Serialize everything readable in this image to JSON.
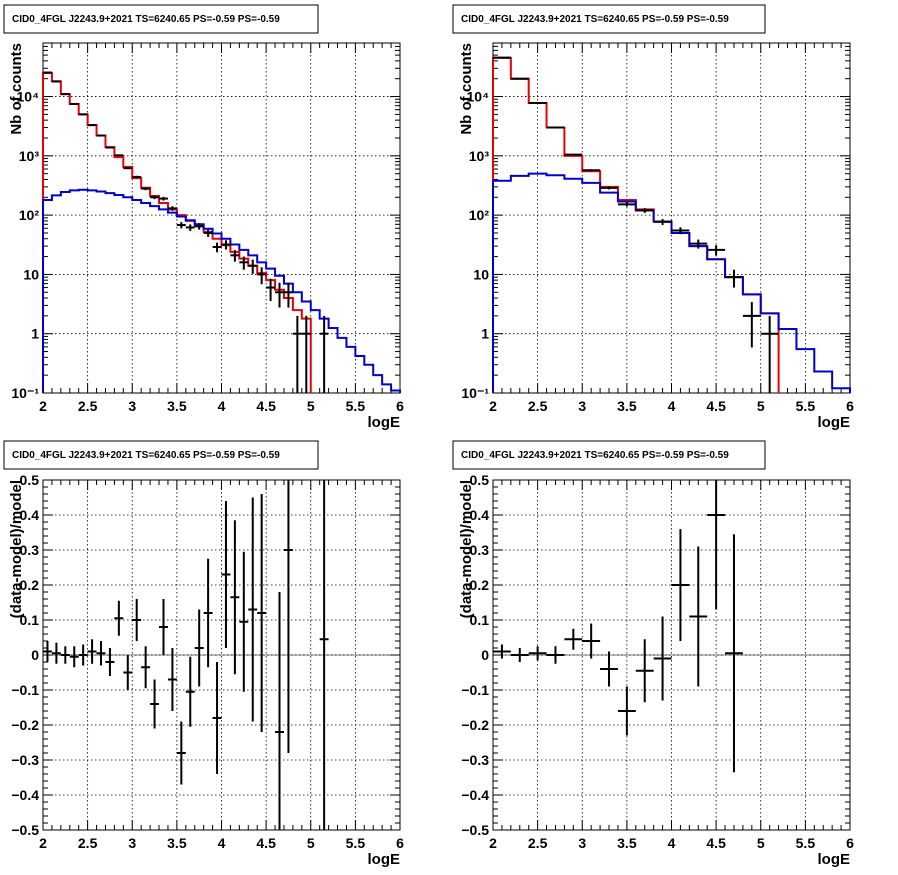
{
  "chart_data": [
    {
      "id": "top-left",
      "type": "histogram",
      "title": "CID0_4FGL J2243.9+2021 TS=6240.65 PS=-0.59 PS=-0.59",
      "xlabel": "logE",
      "ylabel": "Nb of counts",
      "xlim": [
        2,
        6
      ],
      "ylim": [
        0.1,
        80000
      ],
      "yscale": "log",
      "grid": true,
      "xticks": [
        "2",
        "2.5",
        "3",
        "3.5",
        "4",
        "4.5",
        "5",
        "5.5",
        "6"
      ],
      "yticks": [
        {
          "value": 0.1,
          "label": "10⁻¹"
        },
        {
          "value": 1,
          "label": "1"
        },
        {
          "value": 10,
          "label": "10"
        },
        {
          "value": 100,
          "label": "10²"
        },
        {
          "value": 1000,
          "label": "10³"
        },
        {
          "value": 10000,
          "label": "10⁴"
        }
      ],
      "bin_width": 0.1,
      "series": [
        {
          "color": "#e8000b",
          "style": "step",
          "x": [
            2.0,
            2.1,
            2.2,
            2.3,
            2.4,
            2.5,
            2.6,
            2.7,
            2.8,
            2.9,
            3.0,
            3.1,
            3.2,
            3.3,
            3.4,
            3.5,
            3.6,
            3.7,
            3.8,
            3.9,
            4.0,
            4.1,
            4.2,
            4.3,
            4.4,
            4.5,
            4.6,
            4.7,
            4.8,
            4.9
          ],
          "values": [
            25000,
            18000,
            11000,
            7500,
            5000,
            3300,
            2200,
            1400,
            950,
            650,
            420,
            290,
            210,
            160,
            125,
            100,
            80,
            65,
            52,
            40,
            31,
            24,
            18.5,
            14,
            10.5,
            8,
            5.5,
            4,
            2.5,
            1.8
          ]
        },
        {
          "color": "#0000cc",
          "style": "step",
          "x": [
            2.0,
            2.1,
            2.2,
            2.3,
            2.4,
            2.5,
            2.6,
            2.7,
            2.8,
            2.9,
            3.0,
            3.1,
            3.2,
            3.3,
            3.4,
            3.5,
            3.6,
            3.7,
            3.8,
            3.9,
            4.0,
            4.1,
            4.2,
            4.3,
            4.4,
            4.5,
            4.6,
            4.7,
            4.8,
            4.9,
            5.0,
            5.1,
            5.2,
            5.3,
            5.4,
            5.5,
            5.6,
            5.7,
            5.8,
            5.9
          ],
          "values": [
            180,
            215,
            245,
            262,
            268,
            262,
            250,
            235,
            218,
            200,
            180,
            160,
            142,
            125,
            110,
            95,
            82,
            70,
            59,
            49,
            40,
            32,
            26,
            21,
            16,
            12.5,
            9.5,
            7,
            5,
            3.5,
            2.5,
            1.8,
            1.25,
            0.85,
            0.6,
            0.42,
            0.3,
            0.2,
            0.14,
            0.11
          ]
        }
      ],
      "data_points": {
        "x": [
          2.05,
          2.15,
          2.25,
          2.35,
          2.45,
          2.55,
          2.65,
          2.75,
          2.85,
          2.95,
          3.05,
          3.15,
          3.25,
          3.35,
          3.45,
          3.55,
          3.65,
          3.75,
          3.85,
          3.95,
          4.05,
          4.15,
          4.25,
          4.35,
          4.45,
          4.55,
          4.65,
          4.75,
          4.85,
          4.95,
          5.15
        ],
        "y": [
          25400,
          18000,
          11000,
          7500,
          5000,
          3300,
          2200,
          1380,
          1020,
          620,
          440,
          280,
          200,
          190,
          130,
          68,
          62,
          65,
          50,
          29,
          32,
          21,
          16,
          14,
          10,
          6,
          5,
          5,
          1,
          1,
          1
        ],
        "xerr": 0.05
      }
    },
    {
      "id": "top-right",
      "type": "histogram",
      "title": "CID0_4FGL J2243.9+2021 TS=6240.65 PS=-0.59 PS=-0.59",
      "xlabel": "logE",
      "ylabel": "Nb of counts",
      "xlim": [
        2,
        6
      ],
      "ylim": [
        0.1,
        80000
      ],
      "yscale": "log",
      "grid": true,
      "xticks": [
        "2",
        "2.5",
        "3",
        "3.5",
        "4",
        "4.5",
        "5",
        "5.5",
        "6"
      ],
      "yticks": [
        {
          "value": 0.1,
          "label": "10⁻¹"
        },
        {
          "value": 1,
          "label": "1"
        },
        {
          "value": 10,
          "label": "10"
        },
        {
          "value": 100,
          "label": "10²"
        },
        {
          "value": 1000,
          "label": "10³"
        },
        {
          "value": 10000,
          "label": "10⁴"
        }
      ],
      "bin_width": 0.2,
      "series": [
        {
          "color": "#e8000b",
          "style": "step",
          "x": [
            2.0,
            2.2,
            2.4,
            2.6,
            2.8,
            3.0,
            3.2,
            3.4,
            3.6,
            3.8,
            4.0,
            4.2,
            4.4,
            4.6,
            4.8,
            5.0
          ],
          "values": [
            45000,
            20000,
            7800,
            3000,
            1000,
            550,
            300,
            180,
            125,
            78,
            50,
            30,
            18,
            9,
            4.6,
            2.2
          ]
        },
        {
          "color": "#0000cc",
          "style": "step",
          "x": [
            2.0,
            2.2,
            2.4,
            2.6,
            2.8,
            3.0,
            3.2,
            3.4,
            3.6,
            3.8,
            4.0,
            4.2,
            4.4,
            4.6,
            4.8,
            5.0,
            5.2,
            5.4,
            5.6,
            5.8
          ],
          "values": [
            380,
            460,
            500,
            470,
            410,
            350,
            240,
            170,
            120,
            78,
            50,
            30,
            18,
            9,
            4.6,
            2.2,
            1.2,
            0.55,
            0.23,
            0.12
          ]
        }
      ],
      "data_points": {
        "x": [
          2.1,
          2.3,
          2.5,
          2.7,
          2.9,
          3.1,
          3.3,
          3.5,
          3.7,
          3.9,
          4.1,
          4.3,
          4.5,
          4.7,
          4.9,
          5.1
        ],
        "y": [
          45400,
          20000,
          7800,
          3000,
          1050,
          570,
          288,
          152,
          120,
          77,
          55,
          33,
          26,
          9,
          2,
          1
        ],
        "xerr": 0.1
      }
    },
    {
      "id": "bottom-left",
      "type": "scatter",
      "title": "CID0_4FGL J2243.9+2021 TS=6240.65 PS=-0.59 PS=-0.59",
      "xlabel": "logE",
      "ylabel": "(data-model)/model",
      "xlim": [
        2,
        6
      ],
      "ylim": [
        -0.5,
        0.5
      ],
      "grid": true,
      "xticks": [
        "2",
        "2.5",
        "3",
        "3.5",
        "4",
        "4.5",
        "5",
        "5.5",
        "6"
      ],
      "yticks": [
        {
          "value": -0.5,
          "label": "−0.5"
        },
        {
          "value": -0.4,
          "label": "−0.4"
        },
        {
          "value": -0.3,
          "label": "−0.3"
        },
        {
          "value": -0.2,
          "label": "−0.2"
        },
        {
          "value": -0.1,
          "label": "−0.1"
        },
        {
          "value": 0,
          "label": "0"
        },
        {
          "value": 0.1,
          "label": "0.1"
        },
        {
          "value": 0.2,
          "label": "0.2"
        },
        {
          "value": 0.3,
          "label": "0.3"
        },
        {
          "value": 0.4,
          "label": "0.4"
        },
        {
          "value": 0.5,
          "label": "0.5"
        }
      ],
      "data_points": {
        "x": [
          2.05,
          2.15,
          2.25,
          2.35,
          2.45,
          2.55,
          2.65,
          2.75,
          2.85,
          2.95,
          3.05,
          3.15,
          3.25,
          3.35,
          3.45,
          3.55,
          3.65,
          3.75,
          3.85,
          3.95,
          4.05,
          4.15,
          4.25,
          4.35,
          4.45,
          4.65,
          4.75,
          5.15
        ],
        "y": [
          0.01,
          0.005,
          0.0,
          -0.005,
          0.0,
          0.01,
          0.005,
          -0.02,
          0.105,
          -0.05,
          0.1,
          -0.035,
          -0.14,
          0.08,
          -0.07,
          -0.28,
          -0.105,
          0.02,
          0.12,
          -0.18,
          0.23,
          0.165,
          0.095,
          0.13,
          0.12,
          -0.22,
          0.3,
          0.045
        ],
        "yerr": [
          0.03,
          0.03,
          0.025,
          0.03,
          0.03,
          0.035,
          0.035,
          0.04,
          0.05,
          0.05,
          0.06,
          0.06,
          0.07,
          0.08,
          0.09,
          0.09,
          0.1,
          0.11,
          0.155,
          0.16,
          0.21,
          0.22,
          0.2,
          0.32,
          0.34,
          0.4,
          0.58,
          0.6
        ],
        "xerr": 0.05
      }
    },
    {
      "id": "bottom-right",
      "type": "scatter",
      "title": "CID0_4FGL J2243.9+2021 TS=6240.65 PS=-0.59 PS=-0.59",
      "xlabel": "logE",
      "ylabel": "(data-model)/model",
      "xlim": [
        2,
        6
      ],
      "ylim": [
        -0.5,
        0.5
      ],
      "grid": true,
      "xticks": [
        "2",
        "2.5",
        "3",
        "3.5",
        "4",
        "4.5",
        "5",
        "5.5",
        "6"
      ],
      "yticks": [
        {
          "value": -0.5,
          "label": "−0.5"
        },
        {
          "value": -0.4,
          "label": "−0.4"
        },
        {
          "value": -0.3,
          "label": "−0.3"
        },
        {
          "value": -0.2,
          "label": "−0.2"
        },
        {
          "value": -0.1,
          "label": "−0.1"
        },
        {
          "value": 0,
          "label": "0"
        },
        {
          "value": 0.1,
          "label": "0.1"
        },
        {
          "value": 0.2,
          "label": "0.2"
        },
        {
          "value": 0.3,
          "label": "0.3"
        },
        {
          "value": 0.4,
          "label": "0.4"
        },
        {
          "value": 0.5,
          "label": "0.5"
        }
      ],
      "data_points": {
        "x": [
          2.1,
          2.3,
          2.5,
          2.7,
          2.9,
          3.1,
          3.3,
          3.5,
          3.7,
          3.9,
          4.1,
          4.3,
          4.5,
          4.7
        ],
        "y": [
          0.01,
          0.0,
          0.005,
          0.0,
          0.045,
          0.04,
          -0.04,
          -0.16,
          -0.045,
          -0.01,
          0.2,
          0.11,
          0.4,
          0.005
        ],
        "yerr": [
          0.02,
          0.02,
          0.02,
          0.025,
          0.03,
          0.05,
          0.05,
          0.07,
          0.09,
          0.12,
          0.16,
          0.2,
          0.27,
          0.34
        ],
        "xerr": 0.1
      }
    }
  ]
}
